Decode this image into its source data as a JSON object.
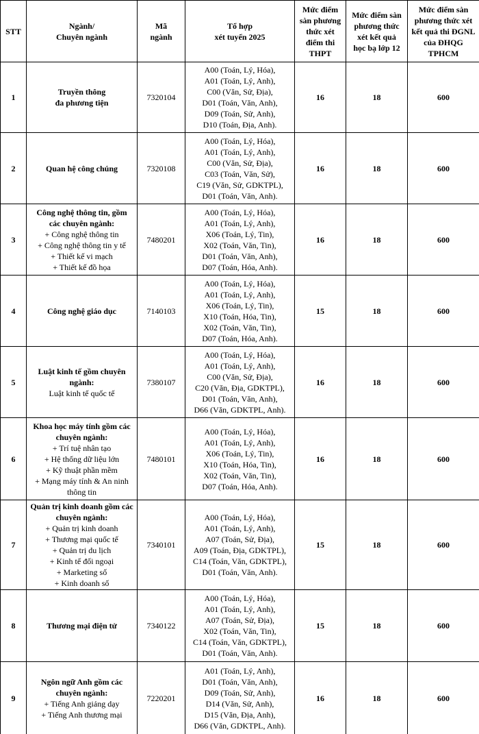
{
  "table": {
    "headers": [
      [
        "STT"
      ],
      [
        "Ngành/",
        "Chuyên ngành"
      ],
      [
        "Mã",
        "ngành"
      ],
      [
        "Tổ hợp",
        "xét tuyển 2025"
      ],
      [
        "Mức điểm",
        "sàn phương",
        "thức xét",
        "điểm thi",
        "THPT"
      ],
      [
        "Mức điểm sàn",
        "phương thức",
        "xét kết quả",
        "học bạ lớp 12"
      ],
      [
        "Mức điểm sàn",
        "phương thức xét",
        "kết quả thi ĐGNL",
        "của ĐHQG",
        "TPHCM"
      ]
    ],
    "rows": [
      {
        "stt": 1,
        "title": [
          "Truyền thông",
          "đa phương tiện"
        ],
        "items": [],
        "code": "7320104",
        "combos": [
          "A00 (Toán, Lý, Hóa),",
          "A01 (Toán, Lý, Anh),",
          "C00 (Văn, Sử, Địa),",
          "D01 (Toán, Văn, Anh),",
          "D09 (Toán, Sử, Anh),",
          "D10 (Toán, Địa, Anh)."
        ],
        "thpt": 16,
        "hocba": 18,
        "dgnl": 600
      },
      {
        "stt": 2,
        "title": [
          "Quan hệ công chúng"
        ],
        "items": [],
        "code": "7320108",
        "combos": [
          "A00 (Toán, Lý, Hóa),",
          "A01 (Toán, Lý, Anh),",
          "C00 (Văn, Sử, Địa),",
          "C03 (Toán, Văn, Sử),",
          "C19 (Văn, Sử, GDKTPL),",
          "D01 (Toán, Văn, Anh)."
        ],
        "thpt": 16,
        "hocba": 18,
        "dgnl": 600
      },
      {
        "stt": 3,
        "title": [
          "Công nghệ thông tin, gồm",
          "các chuyên ngành:"
        ],
        "items": [
          "+ Công nghệ thông tin",
          "+ Công nghệ thông tin y tế",
          "+ Thiết kế vi mạch",
          "+ Thiết kế đồ họa"
        ],
        "code": "7480201",
        "combos": [
          "A00 (Toán, Lý, Hóa),",
          "A01 (Toán, Lý, Anh),",
          "X06 (Toán, Lý, Tin),",
          "X02 (Toán, Văn, Tin),",
          "D01 (Toán, Văn, Anh),",
          "D07 (Toán, Hóa, Anh)."
        ],
        "thpt": 16,
        "hocba": 18,
        "dgnl": 600
      },
      {
        "stt": 4,
        "title": [
          "Công nghệ giáo dục"
        ],
        "items": [],
        "code": "7140103",
        "combos": [
          "A00 (Toán, Lý, Hóa),",
          "A01 (Toán, Lý, Anh),",
          "X06 (Toán, Lý, Tin),",
          "X10 (Toán, Hóa, Tin),",
          "X02 (Toán, Văn, Tin),",
          "D07 (Toán, Hóa, Anh)."
        ],
        "thpt": 15,
        "hocba": 18,
        "dgnl": 600
      },
      {
        "stt": 5,
        "title": [
          "Luật kinh tế gồm chuyên",
          "ngành:"
        ],
        "items": [
          "Luật kinh tế quốc tế"
        ],
        "code": "7380107",
        "combos": [
          "A00 (Toán, Lý, Hóa),",
          "A01 (Toán, Lý, Anh),",
          "C00 (Văn, Sử, Địa),",
          "C20 (Văn, Địa, GDKTPL),",
          "D01 (Toán, Văn, Anh),",
          "D66 (Văn, GDKTPL, Anh)."
        ],
        "thpt": 16,
        "hocba": 18,
        "dgnl": 600
      },
      {
        "stt": 6,
        "title": [
          "Khoa học máy tính gồm các",
          "chuyên ngành:"
        ],
        "items": [
          "+ Trí tuệ nhân tạo",
          "+ Hệ thống dữ liệu lớn",
          "+ Kỹ thuật phần mềm",
          "+ Mạng máy tính & An ninh",
          "thông tin"
        ],
        "code": "7480101",
        "combos": [
          "A00 (Toán, Lý, Hóa),",
          "A01 (Toán, Lý, Anh),",
          "X06 (Toán, Lý, Tin),",
          "X10 (Toán, Hóa, Tin),",
          "X02 (Toán, Văn, Tin),",
          "D07 (Toán, Hóa, Anh)."
        ],
        "thpt": 16,
        "hocba": 18,
        "dgnl": 600
      },
      {
        "stt": 7,
        "title": [
          "Quản trị kinh doanh gồm các",
          "chuyên ngành:"
        ],
        "items": [
          "+ Quản trị kinh doanh",
          "+ Thương mại quốc tế",
          "+ Quản trị du lịch",
          "+ Kinh tế đối ngoại",
          "+ Marketing số",
          "+ Kinh doanh số"
        ],
        "code": "7340101",
        "combos": [
          "A00 (Toán, Lý, Hóa),",
          "A01 (Toán, Lý, Anh),",
          "A07 (Toán, Sử, Địa),",
          "A09 (Toán, Địa, GDKTPL),",
          "C14 (Toán, Văn, GDKTPL),",
          "D01 (Toán, Văn, Anh)."
        ],
        "thpt": 15,
        "hocba": 18,
        "dgnl": 600
      },
      {
        "stt": 8,
        "title": [
          "Thương mại điện tử"
        ],
        "items": [],
        "code": "7340122",
        "combos": [
          "A00 (Toán, Lý, Hóa),",
          "A01 (Toán, Lý, Anh),",
          "A07 (Toán, Sử, Địa),",
          "X02 (Toán, Văn, Tin),",
          "C14 (Toán, Văn, GDKTPL),",
          "D01 (Toán, Văn, Anh)."
        ],
        "thpt": 15,
        "hocba": 18,
        "dgnl": 600
      },
      {
        "stt": 9,
        "title": [
          "Ngôn ngữ Anh gồm các",
          "chuyên ngành:"
        ],
        "items": [
          "+ Tiếng Anh giảng dạy",
          "+ Tiếng Anh thương mại"
        ],
        "code": "7220201",
        "combos": [
          "A01 (Toán, Lý, Anh),",
          "D01 (Toán, Văn, Anh),",
          "D09 (Toán, Sử, Anh),",
          "D14 (Văn, Sử, Anh),",
          "D15 (Văn, Địa, Anh),",
          "D66 (Văn, GDKTPL, Anh)."
        ],
        "thpt": 16,
        "hocba": 18,
        "dgnl": 600
      }
    ]
  }
}
